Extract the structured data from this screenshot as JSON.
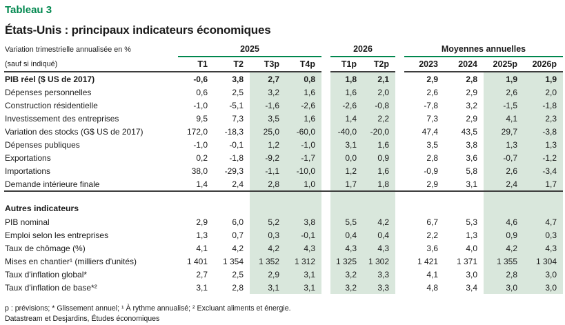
{
  "title": "Tableau 3",
  "subtitle": "États-Unis : principaux indicateurs économiques",
  "colors": {
    "accent_green": "#00874e",
    "shade_green": "#d9e7dc",
    "rule_dark": "#3d3d3d",
    "text": "#1a1a1a"
  },
  "table": {
    "corner_line1": "Variation trimestrielle annualisée en %",
    "corner_line2": "(sauf si indiqué)",
    "groups": [
      {
        "label": "2025",
        "cols": [
          "T1",
          "T2",
          "T3p",
          "T4p"
        ]
      },
      {
        "label": "2026",
        "cols": [
          "T1p",
          "T2p"
        ]
      },
      {
        "label": "Moyennes annuelles",
        "cols": [
          "2023",
          "2024",
          "2025p",
          "2026p"
        ]
      }
    ],
    "shaded_columns": [
      "T3p",
      "T4p",
      "T1p",
      "T2p",
      "2025p",
      "2026p"
    ],
    "sections": [
      {
        "header": null,
        "rows": [
          {
            "label": "PIB réel ($ US de 2017)",
            "bold": true,
            "values": [
              "-0,6",
              "3,8",
              "2,7",
              "0,8",
              "1,8",
              "2,1",
              "2,9",
              "2,8",
              "1,9",
              "1,9"
            ]
          },
          {
            "label": "Dépenses personnelles",
            "values": [
              "0,6",
              "2,5",
              "3,2",
              "1,6",
              "1,6",
              "2,0",
              "2,6",
              "2,9",
              "2,6",
              "2,0"
            ]
          },
          {
            "label": "Construction résidentielle",
            "values": [
              "-1,0",
              "-5,1",
              "-1,6",
              "-2,6",
              "-2,6",
              "-0,8",
              "-7,8",
              "3,2",
              "-1,5",
              "-1,8"
            ]
          },
          {
            "label": "Investissement des entreprises",
            "values": [
              "9,5",
              "7,3",
              "3,5",
              "1,6",
              "1,4",
              "2,2",
              "7,3",
              "2,9",
              "4,1",
              "2,3"
            ]
          },
          {
            "label": "Variation des stocks (G$ US de 2017)",
            "values": [
              "172,0",
              "-18,3",
              "25,0",
              "-60,0",
              "-40,0",
              "-20,0",
              "47,4",
              "43,5",
              "29,7",
              "-3,8"
            ]
          },
          {
            "label": "Dépenses publiques",
            "values": [
              "-1,0",
              "-0,1",
              "1,2",
              "-1,0",
              "3,1",
              "1,6",
              "3,5",
              "3,8",
              "1,3",
              "1,3"
            ]
          },
          {
            "label": "Exportations",
            "values": [
              "0,2",
              "-1,8",
              "-9,2",
              "-1,7",
              "0,0",
              "0,9",
              "2,8",
              "3,6",
              "-0,7",
              "-1,2"
            ]
          },
          {
            "label": "Importations",
            "values": [
              "38,0",
              "-29,3",
              "-1,1",
              "-10,0",
              "1,2",
              "1,6",
              "-0,9",
              "5,8",
              "2,6",
              "-3,4"
            ]
          },
          {
            "label": "Demande intérieure finale",
            "separator_below": true,
            "values": [
              "1,4",
              "2,4",
              "2,8",
              "1,0",
              "1,7",
              "1,8",
              "2,9",
              "3,1",
              "2,4",
              "1,7"
            ]
          }
        ]
      },
      {
        "header": "Autres indicateurs",
        "rows": [
          {
            "label": "PIB nominal",
            "values": [
              "2,9",
              "6,0",
              "5,2",
              "3,8",
              "5,5",
              "4,2",
              "6,7",
              "5,3",
              "4,6",
              "4,7"
            ]
          },
          {
            "label": "Emploi selon les entreprises",
            "values": [
              "1,3",
              "0,7",
              "0,3",
              "-0,1",
              "0,4",
              "0,4",
              "2,2",
              "1,3",
              "0,9",
              "0,3"
            ]
          },
          {
            "label": "Taux de chômage (%)",
            "values": [
              "4,1",
              "4,2",
              "4,2",
              "4,3",
              "4,3",
              "4,3",
              "3,6",
              "4,0",
              "4,2",
              "4,3"
            ]
          },
          {
            "label": "Mises en chantier¹ (milliers d'unités)",
            "values": [
              "1 401",
              "1 354",
              "1 352",
              "1 312",
              "1 325",
              "1 302",
              "1 421",
              "1 371",
              "1 355",
              "1 304"
            ]
          },
          {
            "label": "Taux d'inflation global*",
            "values": [
              "2,7",
              "2,5",
              "2,9",
              "3,1",
              "3,2",
              "3,3",
              "4,1",
              "3,0",
              "2,8",
              "3,0"
            ]
          },
          {
            "label": "Taux d'inflation de base*²",
            "values": [
              "3,1",
              "2,8",
              "3,1",
              "3,1",
              "3,2",
              "3,3",
              "4,8",
              "3,4",
              "3,0",
              "3,0"
            ]
          }
        ]
      }
    ]
  },
  "footnotes": {
    "line1": "p : prévisions; * Glissement annuel; ¹ À rythme annualisé; ² Excluant aliments et énergie.",
    "line2": "Datastream et Desjardins, Études économiques"
  }
}
